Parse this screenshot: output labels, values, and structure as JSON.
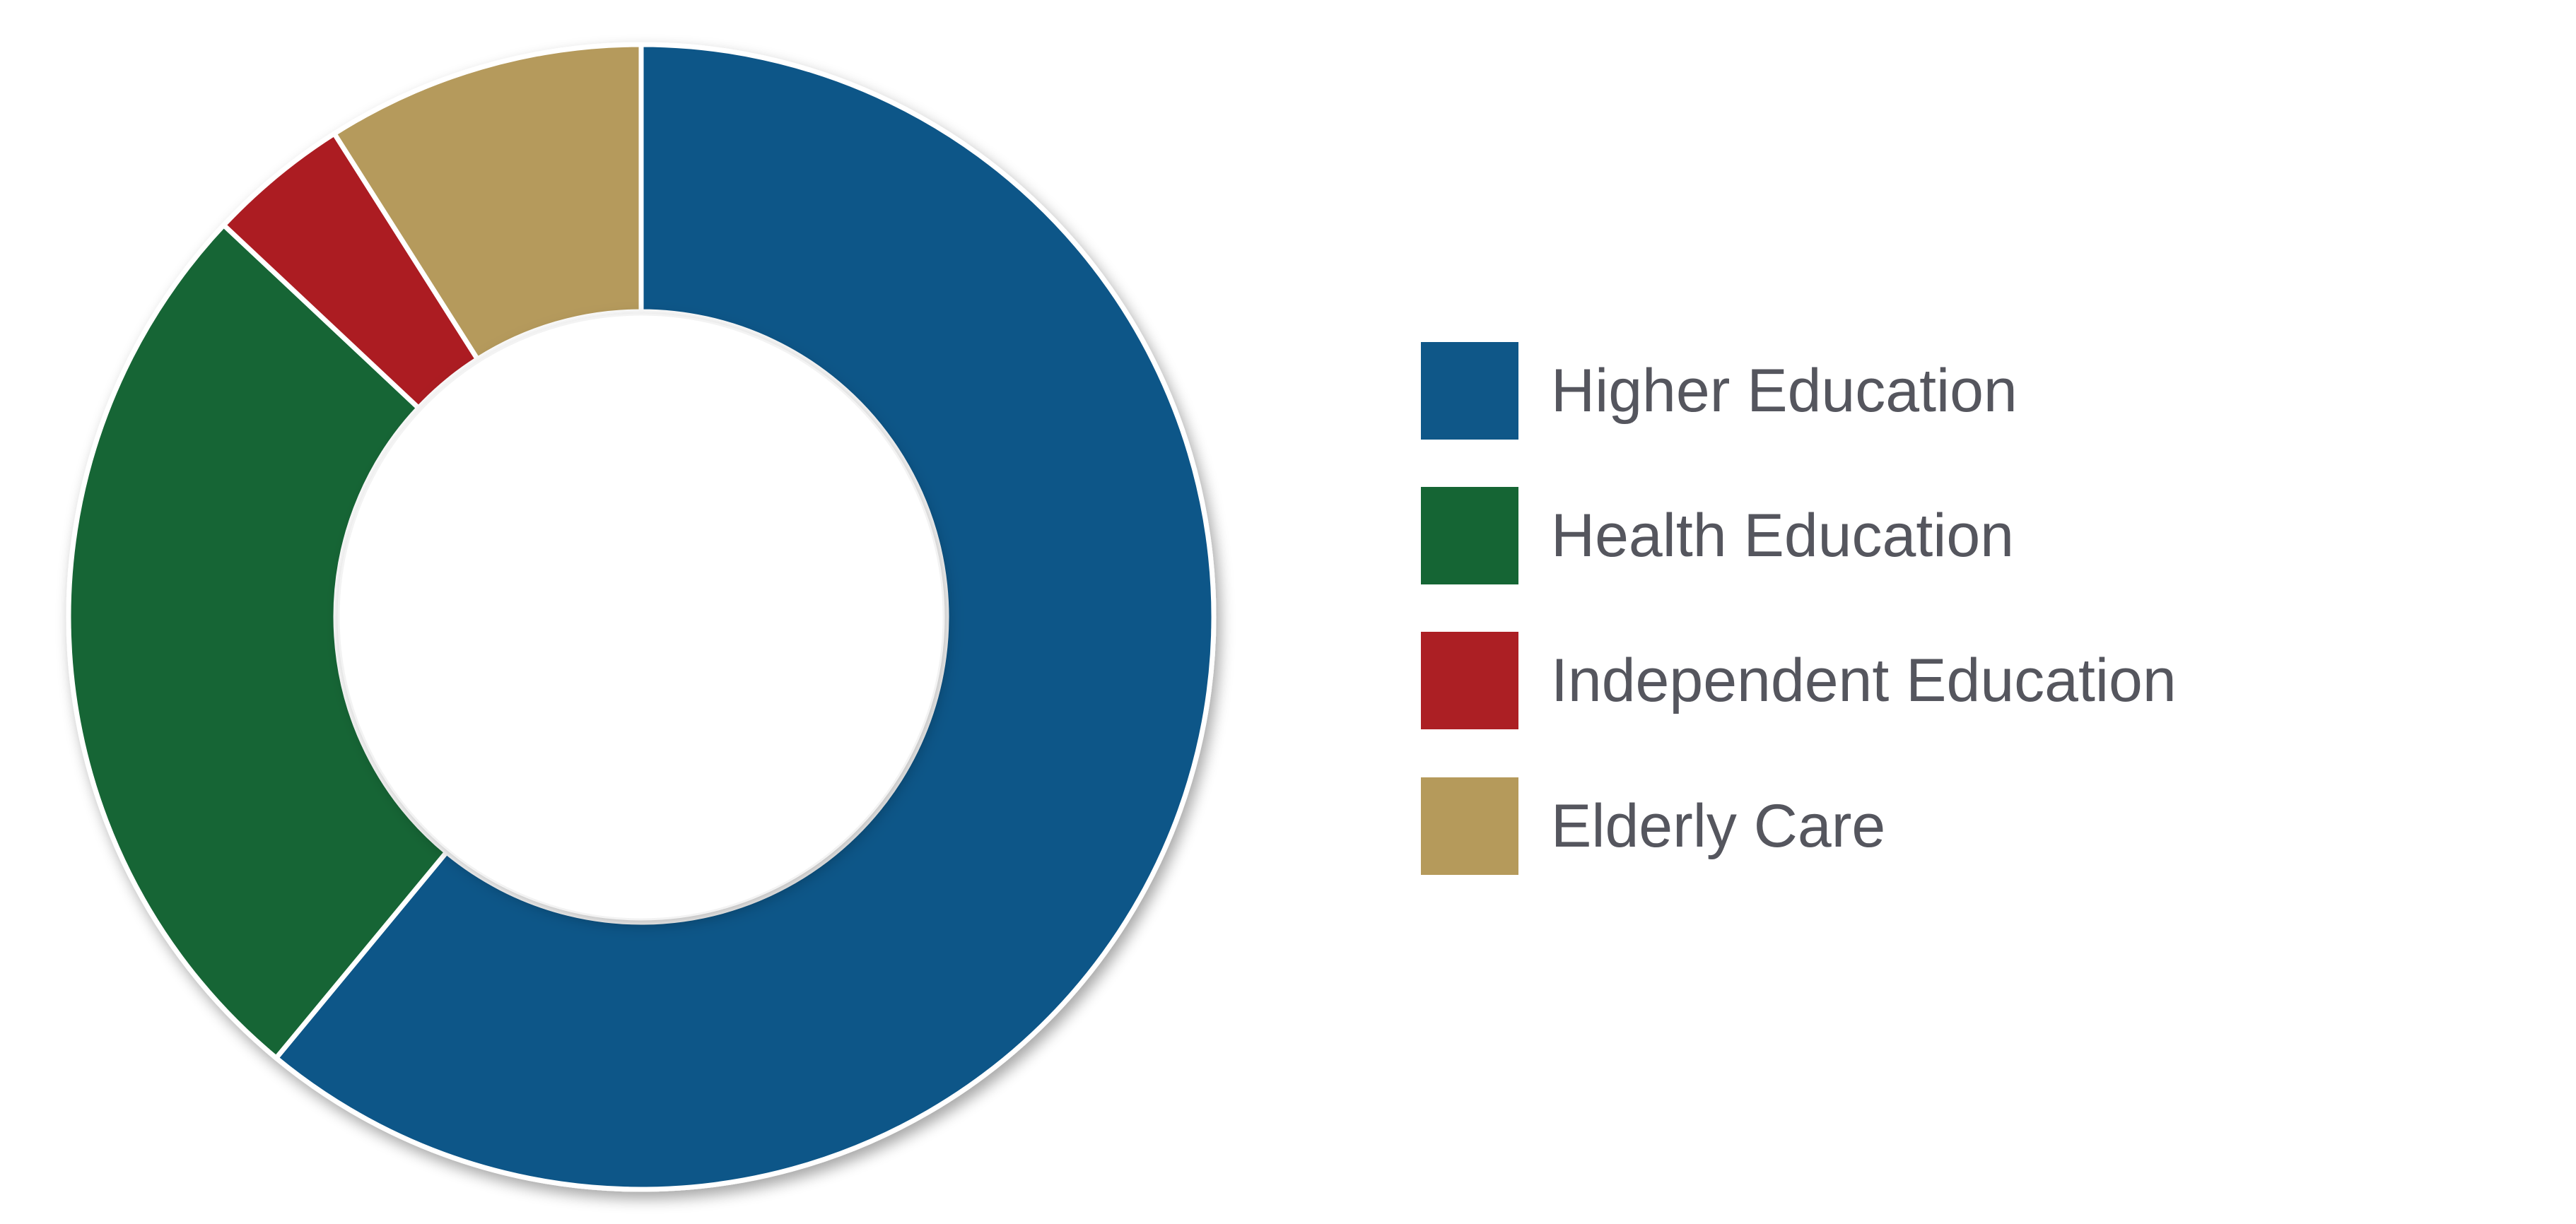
{
  "chart_data": {
    "type": "pie",
    "variant": "donut",
    "categories": [
      "Higher Education",
      "Health Education",
      "Independent Education",
      "Elderly Care"
    ],
    "values": [
      61.0,
      26.0,
      4.0,
      9.0
    ],
    "colors": [
      "#0F5788",
      "#156534",
      "#AC1F24",
      "#B59A5B"
    ],
    "legend": {
      "position": "right",
      "entries": [
        "Higher Education",
        "Health Education",
        "Independent Education",
        "Elderly Care"
      ]
    },
    "title": "",
    "start_angle": "top",
    "direction": "clockwise"
  },
  "style": {
    "label_color": "#55565E",
    "slice_border_color": "#FFFFFF"
  }
}
